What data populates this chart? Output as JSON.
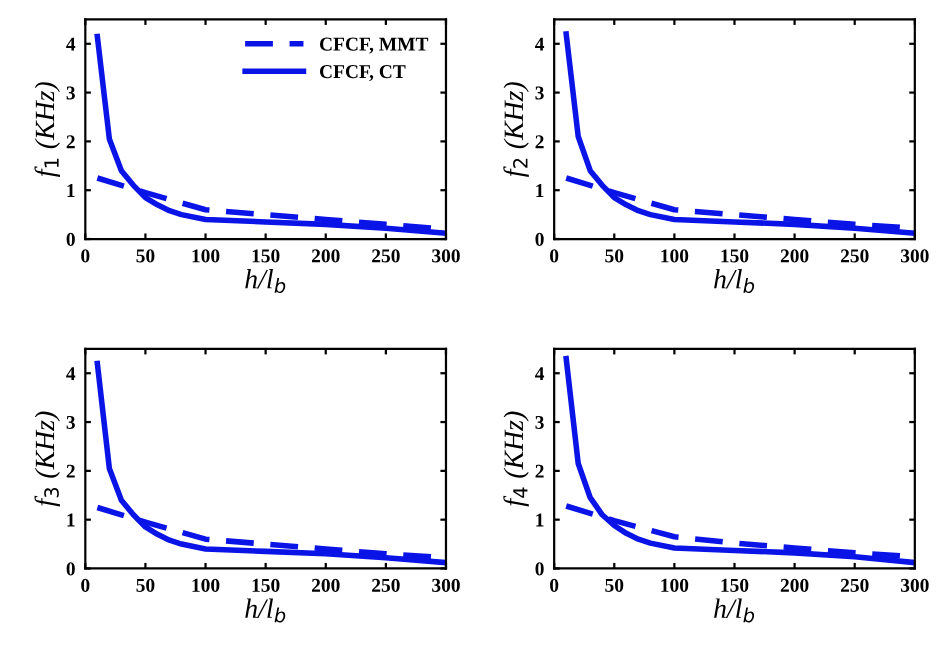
{
  "chart_data": [
    {
      "type": "line",
      "xlabel": "h/l$_{b}$",
      "ylabel": "f$_{1}$ (KHz)",
      "xlim": [
        0,
        300
      ],
      "ylim": [
        0,
        4.5
      ],
      "xticks": [
        0,
        50,
        100,
        150,
        200,
        250,
        300
      ],
      "yticks": [
        0,
        1,
        2,
        3,
        4
      ],
      "legend": "top right",
      "grid": false,
      "series": [
        {
          "name": "CFCF, MMT",
          "color": "#0a14e6",
          "line_style": "dashed",
          "x": [
            10,
            50,
            100,
            150,
            200,
            250,
            300
          ],
          "values": [
            1.25,
            0.95,
            0.6,
            0.5,
            0.4,
            0.3,
            0.2
          ]
        },
        {
          "name": "CFCF, CT",
          "color": "#0a14e6",
          "line_style": "solid",
          "x": [
            10,
            20,
            30,
            40,
            50,
            60,
            70,
            80,
            100,
            150,
            200,
            250,
            300
          ],
          "values": [
            4.15,
            2.05,
            1.4,
            1.1,
            0.85,
            0.7,
            0.58,
            0.5,
            0.4,
            0.35,
            0.3,
            0.22,
            0.12
          ]
        }
      ]
    },
    {
      "type": "line",
      "xlabel": "h/l$_{b}$",
      "ylabel": "f$_{2}$ (KHz)",
      "xlim": [
        0,
        300
      ],
      "ylim": [
        0,
        4.5
      ],
      "xticks": [
        0,
        50,
        100,
        150,
        200,
        250,
        300
      ],
      "yticks": [
        0,
        1,
        2,
        3,
        4
      ],
      "grid": false,
      "series": [
        {
          "color": "#0a14e6",
          "line_style": "dashed",
          "x": [
            10,
            50,
            100,
            150,
            200,
            250,
            300
          ],
          "values": [
            1.25,
            0.95,
            0.6,
            0.5,
            0.4,
            0.3,
            0.22
          ]
        },
        {
          "color": "#0a14e6",
          "line_style": "solid",
          "x": [
            10,
            20,
            30,
            40,
            50,
            60,
            70,
            80,
            100,
            150,
            200,
            250,
            300
          ],
          "values": [
            4.2,
            2.1,
            1.4,
            1.1,
            0.85,
            0.7,
            0.58,
            0.5,
            0.4,
            0.35,
            0.3,
            0.22,
            0.12
          ]
        }
      ]
    },
    {
      "type": "line",
      "xlabel": "h/l$_{b}$",
      "ylabel": "f$_{3}$ (KHz)",
      "xlim": [
        0,
        300
      ],
      "ylim": [
        0,
        4.5
      ],
      "xticks": [
        0,
        50,
        100,
        150,
        200,
        250,
        300
      ],
      "yticks": [
        0,
        1,
        2,
        3,
        4
      ],
      "grid": false,
      "series": [
        {
          "color": "#0a14e6",
          "line_style": "dashed",
          "x": [
            10,
            50,
            100,
            150,
            200,
            250,
            300
          ],
          "values": [
            1.25,
            0.95,
            0.6,
            0.5,
            0.4,
            0.3,
            0.22
          ]
        },
        {
          "color": "#0a14e6",
          "line_style": "solid",
          "x": [
            10,
            20,
            30,
            40,
            50,
            60,
            70,
            80,
            100,
            150,
            200,
            250,
            300
          ],
          "values": [
            4.2,
            2.05,
            1.4,
            1.1,
            0.85,
            0.7,
            0.58,
            0.5,
            0.4,
            0.35,
            0.3,
            0.22,
            0.12
          ]
        }
      ]
    },
    {
      "type": "line",
      "xlabel": "h/l$_{b}$",
      "ylabel": "f$_{4}$ (KHz)",
      "xlim": [
        0,
        300
      ],
      "ylim": [
        0,
        4.5
      ],
      "xticks": [
        0,
        50,
        100,
        150,
        200,
        250,
        300
      ],
      "yticks": [
        0,
        1,
        2,
        3,
        4
      ],
      "grid": false,
      "series": [
        {
          "color": "#0a14e6",
          "line_style": "dashed",
          "x": [
            10,
            50,
            100,
            150,
            200,
            250,
            300
          ],
          "values": [
            1.28,
            0.98,
            0.65,
            0.52,
            0.42,
            0.32,
            0.24
          ]
        },
        {
          "color": "#0a14e6",
          "line_style": "solid",
          "x": [
            10,
            20,
            30,
            40,
            50,
            60,
            70,
            80,
            100,
            150,
            200,
            250,
            300
          ],
          "values": [
            4.3,
            2.15,
            1.45,
            1.1,
            0.88,
            0.72,
            0.6,
            0.52,
            0.42,
            0.37,
            0.32,
            0.24,
            0.12
          ]
        }
      ]
    }
  ]
}
